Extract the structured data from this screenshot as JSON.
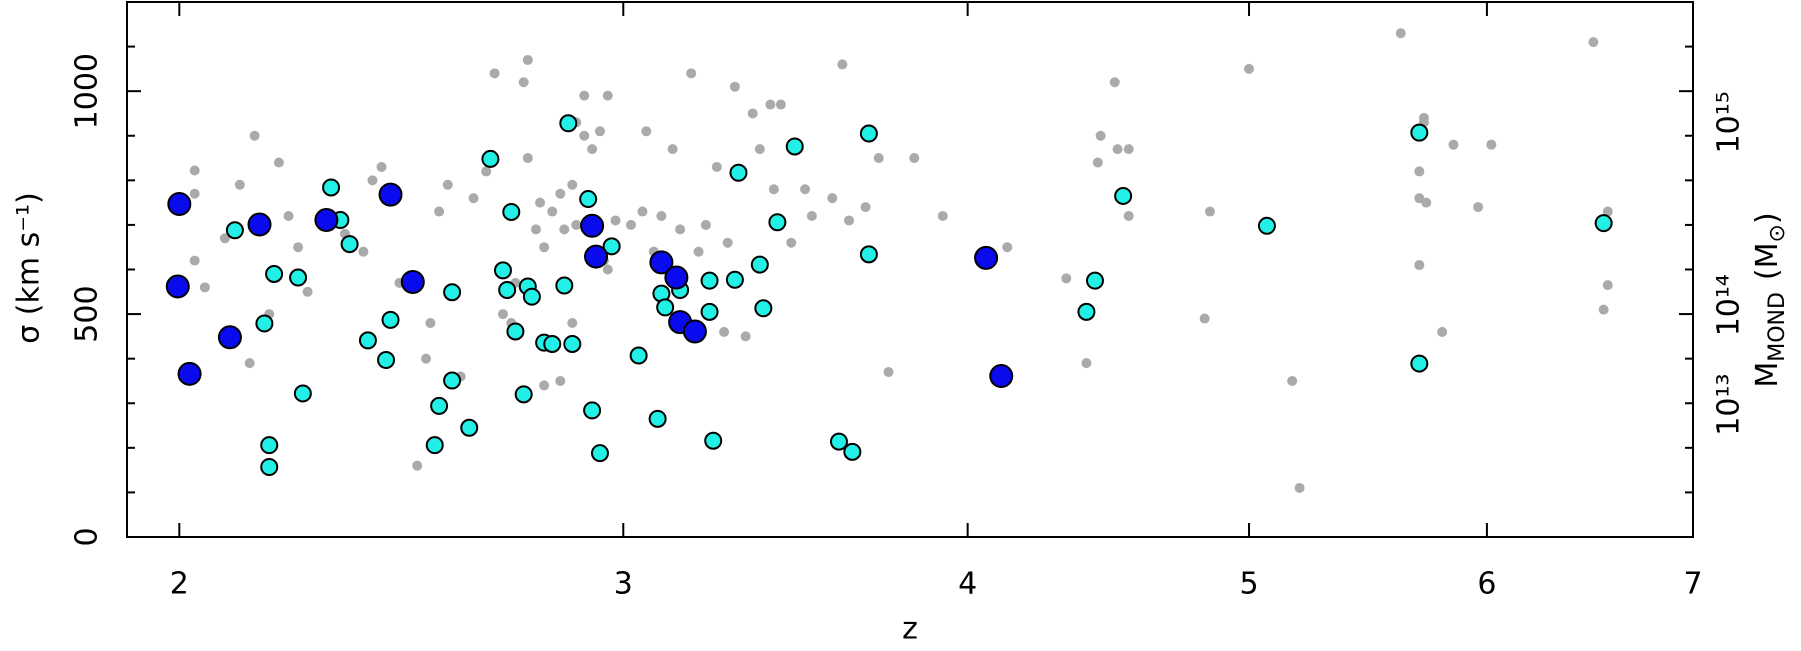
{
  "chart_data": {
    "type": "scatter",
    "xlabel": "z",
    "ylabel": "σ (km s⁻¹)",
    "y2label": {
      "text": "M",
      "subscript": "MOND",
      "unit": "(M",
      "unit_subscript": "⊙",
      "unit_end": ")"
    },
    "xscale": "log1p",
    "xlim": [
      1.9,
      7
    ],
    "xticks": [
      2,
      3,
      4,
      5,
      6,
      7
    ],
    "ylim": [
      0,
      1200
    ],
    "yticks": [
      0,
      500,
      1000
    ],
    "yticks_minor": [
      100,
      200,
      300,
      400,
      600,
      700,
      800,
      900,
      1100
    ],
    "y2lim": [
      0,
      1200
    ],
    "y2ticks": [
      {
        "value": 297,
        "label": "10¹³"
      },
      {
        "value": 520,
        "label": "10¹⁴"
      },
      {
        "value": 930,
        "label": "10¹⁵"
      }
    ],
    "series": [
      {
        "color": "#aaaaaa",
        "edgecolor": "none",
        "marker_size": 5,
        "x": [
          2.03,
          2.03,
          2.05,
          2.03,
          2.12,
          2.09,
          2.15,
          2.2,
          2.14,
          2.18,
          2.22,
          2.24,
          2.26,
          2.3,
          2.34,
          2.38,
          2.4,
          2.42,
          2.46,
          2.5,
          2.52,
          2.53,
          2.55,
          2.57,
          2.6,
          2.63,
          2.66,
          2.68,
          2.7,
          2.72,
          2.75,
          2.76,
          2.73,
          2.76,
          2.78,
          2.79,
          2.8,
          2.8,
          2.82,
          2.84,
          2.84,
          2.85,
          2.87,
          2.88,
          2.87,
          2.88,
          2.9,
          2.9,
          2.92,
          2.94,
          2.96,
          2.95,
          2.96,
          2.98,
          3.02,
          3.05,
          3.06,
          3.08,
          3.1,
          3.13,
          3.15,
          3.18,
          3.2,
          3.22,
          3.25,
          3.27,
          3.28,
          3.3,
          3.33,
          3.35,
          3.37,
          3.4,
          3.41,
          3.43,
          3.46,
          3.5,
          3.52,
          3.58,
          3.61,
          3.63,
          3.68,
          3.72,
          3.75,
          3.83,
          3.92,
          4.13,
          4.33,
          4.4,
          4.44,
          4.45,
          4.5,
          4.51,
          4.55,
          4.55,
          4.83,
          4.85,
          5.0,
          5.17,
          5.2,
          5.62,
          5.7,
          5.7,
          5.7,
          5.72,
          5.72,
          5.73,
          5.8,
          5.85,
          5.96,
          6.02,
          6.5,
          6.57,
          6.57,
          6.55
        ],
        "values": [
          822,
          770,
          560,
          620,
          790,
          670,
          900,
          840,
          390,
          500,
          720,
          650,
          550,
          720,
          680,
          640,
          800,
          830,
          570,
          160,
          400,
          480,
          730,
          790,
          360,
          760,
          820,
          1040,
          500,
          480,
          1020,
          1070,
          570,
          850,
          690,
          750,
          340,
          650,
          730,
          770,
          350,
          690,
          790,
          700,
          480,
          930,
          990,
          900,
          870,
          910,
          990,
          620,
          600,
          710,
          700,
          730,
          910,
          640,
          720,
          870,
          690,
          1040,
          640,
          700,
          830,
          460,
          660,
          1010,
          450,
          950,
          870,
          970,
          780,
          970,
          660,
          780,
          720,
          760,
          1060,
          710,
          740,
          850,
          370,
          850,
          720,
          650,
          580,
          390,
          840,
          900,
          1020,
          870,
          720,
          870,
          490,
          730,
          1050,
          350,
          110,
          1130,
          820,
          760,
          610,
          930,
          940,
          750,
          460,
          880,
          740,
          880,
          1110,
          730,
          565,
          510
        ]
      },
      {
        "color": "#22f0e6",
        "edgecolor": "#000000",
        "marker_size": 8,
        "x": [
          2.11,
          2.17,
          2.19,
          2.18,
          2.18,
          2.24,
          2.25,
          2.31,
          2.33,
          2.35,
          2.39,
          2.43,
          2.44,
          2.55,
          2.54,
          2.58,
          2.58,
          2.62,
          2.67,
          2.7,
          2.71,
          2.72,
          2.73,
          2.75,
          2.76,
          2.77,
          2.8,
          2.82,
          2.85,
          2.86,
          2.87,
          2.91,
          2.92,
          2.94,
          2.97,
          3.04,
          3.09,
          3.1,
          3.11,
          3.15,
          3.23,
          3.23,
          3.24,
          3.3,
          3.31,
          3.37,
          3.38,
          3.42,
          3.47,
          3.6,
          3.64,
          3.69,
          3.69,
          4.4,
          4.43,
          4.53,
          5.07,
          5.7,
          5.7,
          6.55
        ],
        "values": [
          688,
          479,
          590,
          206,
          157,
          582,
          322,
          784,
          711,
          657,
          441,
          397,
          487,
          294,
          206,
          351,
          549,
          245,
          848,
          598,
          554,
          729,
          461,
          320,
          562,
          539,
          436,
          433,
          564,
          928,
          433,
          758,
          284,
          188,
          652,
          407,
          265,
          546,
          515,
          554,
          575,
          505,
          216,
          577,
          817,
          611,
          513,
          706,
          876,
          214,
          191,
          905,
          634,
          505,
          575,
          765,
          698,
          907,
          389,
          704
        ]
      },
      {
        "color": "#0a0aee",
        "edgecolor": "#000000",
        "marker_size": 11,
        "x": [
          2.0,
          1.997,
          2.02,
          2.1,
          2.16,
          2.3,
          2.44,
          2.49,
          2.92,
          2.93,
          3.1,
          3.14,
          3.15,
          3.19,
          4.06,
          4.11
        ],
        "values": [
          747,
          562,
          366,
          448,
          701,
          711,
          768,
          572,
          698,
          629,
          616,
          582,
          482,
          461,
          626,
          361
        ]
      }
    ]
  }
}
